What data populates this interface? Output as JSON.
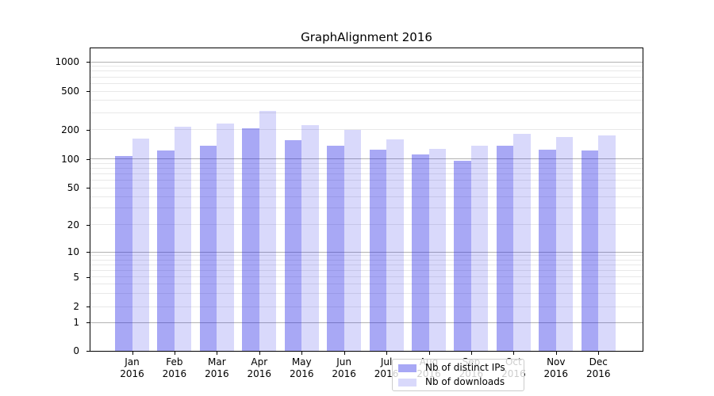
{
  "title": "GraphAlignment 2016",
  "chart_data": {
    "type": "bar",
    "title": "GraphAlignment 2016",
    "xlabel": "",
    "ylabel": "",
    "year": "2016",
    "categories": [
      "Jan",
      "Feb",
      "Mar",
      "Apr",
      "May",
      "Jun",
      "Jul",
      "Aug",
      "Sep",
      "Oct",
      "Nov",
      "Dec"
    ],
    "series": [
      {
        "name": "Nb of distinct IPs",
        "key": "distinct-ips",
        "color": "rgba(30,30,230,0.39)",
        "values": [
          107,
          122,
          135,
          205,
          155,
          137,
          123,
          110,
          96,
          135,
          124,
          122
        ]
      },
      {
        "name": "Nb of downloads",
        "key": "downloads",
        "color": "rgba(30,30,230,0.17)",
        "values": [
          160,
          212,
          230,
          310,
          220,
          200,
          157,
          127,
          136,
          180,
          167,
          173
        ]
      }
    ],
    "y_ticks": [
      0,
      1,
      2,
      5,
      10,
      20,
      50,
      100,
      200,
      500,
      1000
    ],
    "yscale": "asinh (log-like above 1, linear 0-1)",
    "ylim": [
      0,
      1400
    ],
    "grid": {
      "on": true,
      "major": [
        1,
        10,
        100,
        1000
      ],
      "minor": [
        2,
        3,
        4,
        5,
        6,
        7,
        8,
        9,
        20,
        30,
        40,
        50,
        60,
        70,
        80,
        90,
        200,
        300,
        400,
        500,
        600,
        700,
        800,
        900
      ],
      "major_color": "#b2b2b2",
      "minor_color": "#e8e8e8"
    },
    "scale_anchors": [
      [
        0,
        382
      ],
      [
        1,
        346
      ],
      [
        2,
        326
      ],
      [
        5,
        288.5
      ],
      [
        10,
        257
      ],
      [
        20,
        222.5
      ],
      [
        50,
        176
      ],
      [
        100,
        139.5
      ],
      [
        200,
        102.5
      ],
      [
        500,
        54
      ],
      [
        1000,
        17
      ]
    ],
    "legend_position": "lower center"
  }
}
